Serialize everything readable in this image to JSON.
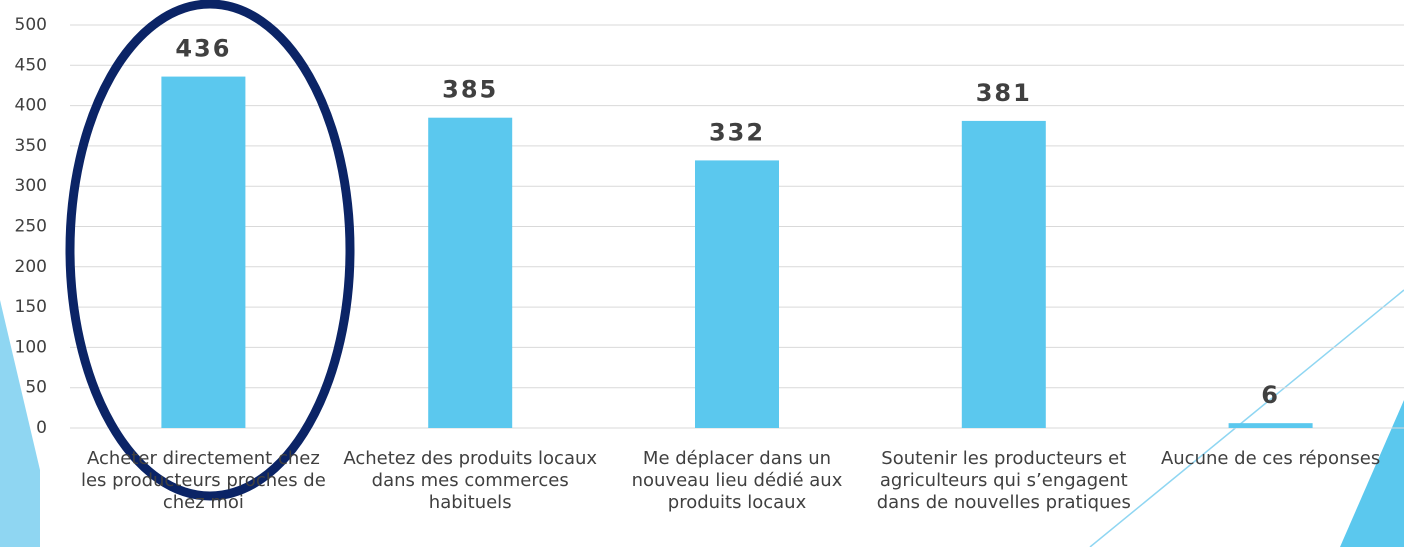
{
  "chart_data": {
    "type": "bar",
    "categories": [
      "Acheter directement chez les producteurs proches de chez moi",
      "Achetez des produits locaux dans mes commerces habituels",
      "Me déplacer dans un nouveau lieu dédié aux produits locaux",
      "Soutenir les producteurs et agriculteurs qui s’engagent dans de nouvelles pratiques",
      "Aucune de ces réponses"
    ],
    "values": [
      436,
      385,
      332,
      381,
      6
    ],
    "color": "#5bc8ee",
    "ylim": [
      0,
      500
    ],
    "yticks": [
      0,
      50,
      100,
      150,
      200,
      250,
      300,
      350,
      400,
      450,
      500
    ],
    "grid": true
  }
}
